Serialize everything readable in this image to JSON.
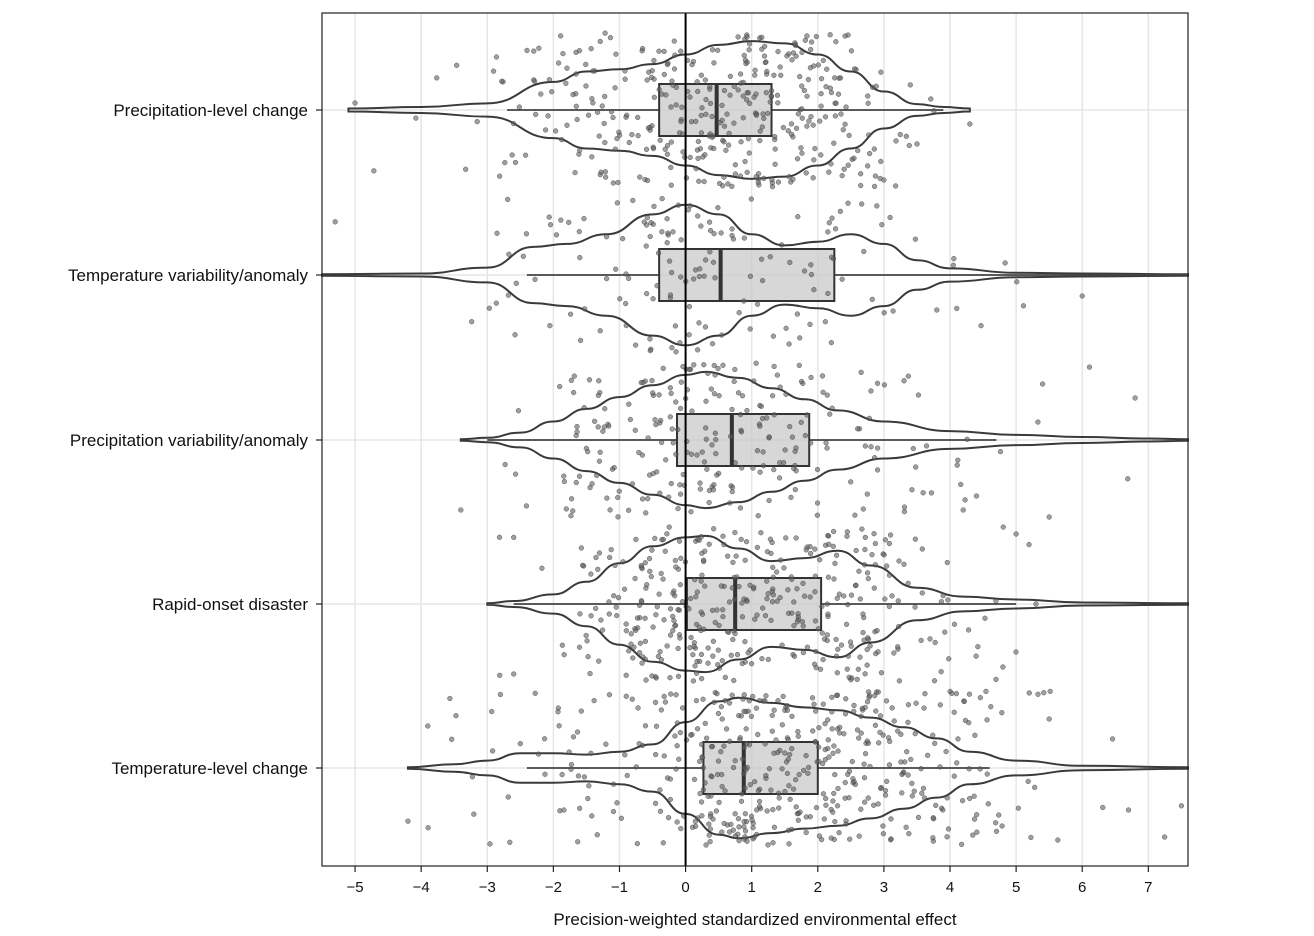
{
  "chart_data": {
    "type": "violin-box-jitter",
    "orientation": "horizontal",
    "xlabel": "Precision-weighted standardized environmental effect",
    "ylabel": "",
    "title": "",
    "xlim": [
      -5.5,
      7.6
    ],
    "xticks": [
      -5,
      -4,
      -3,
      -2,
      -1,
      0,
      1,
      2,
      3,
      4,
      5,
      6,
      7
    ],
    "xtick_labels": [
      "−5",
      "−4",
      "−3",
      "−2",
      "−1",
      "0",
      "1",
      "2",
      "3",
      "4",
      "5",
      "6",
      "7"
    ],
    "grid": true,
    "reference_line_x": 0,
    "categories": [
      "Precipitation-level change",
      "Temperature variability/anomaly",
      "Precipitation variability/anomaly",
      "Rapid-onset disaster",
      "Temperature-level change"
    ],
    "boxes": [
      {
        "category": "Precipitation-level change",
        "whisker_low": -2.7,
        "q1": -0.4,
        "median": 0.47,
        "q3": 1.3,
        "whisker_high": 3.9
      },
      {
        "category": "Temperature variability/anomaly",
        "whisker_low": -2.4,
        "q1": -0.4,
        "median": 0.53,
        "q3": 2.25,
        "whisker_high": 7.6
      },
      {
        "category": "Precipitation variability/anomaly",
        "whisker_low": -3.0,
        "q1": -0.13,
        "median": 0.7,
        "q3": 1.87,
        "whisker_high": 4.7
      },
      {
        "category": "Rapid-onset disaster",
        "whisker_low": -2.6,
        "q1": 0.02,
        "median": 0.75,
        "q3": 2.05,
        "whisker_high": 5.0
      },
      {
        "category": "Temperature-level change",
        "whisker_low": -2.4,
        "q1": 0.27,
        "median": 0.88,
        "q3": 2.0,
        "whisker_high": 4.6
      }
    ],
    "violins": [
      {
        "category": "Precipitation-level change",
        "x_min": -5.1,
        "x_max": 4.3,
        "density": [
          [
            -5.1,
            0.02
          ],
          [
            -4.0,
            0.04
          ],
          [
            -3.0,
            0.09
          ],
          [
            -2.0,
            0.38
          ],
          [
            -1.5,
            0.52
          ],
          [
            -1.0,
            0.55
          ],
          [
            -0.5,
            0.62
          ],
          [
            0,
            0.75
          ],
          [
            0.5,
            0.88
          ],
          [
            1.0,
            0.93
          ],
          [
            1.5,
            0.9
          ],
          [
            2.0,
            0.75
          ],
          [
            2.5,
            0.52
          ],
          [
            3.0,
            0.25
          ],
          [
            3.5,
            0.08
          ],
          [
            3.9,
            0.04
          ],
          [
            4.3,
            0.02
          ]
        ]
      },
      {
        "category": "Temperature variability/anomaly",
        "x_min": -5.5,
        "x_max": 7.6,
        "density": [
          [
            -5.5,
            0.01
          ],
          [
            -4.0,
            0.02
          ],
          [
            -3.0,
            0.1
          ],
          [
            -2.3,
            0.38
          ],
          [
            -1.8,
            0.42
          ],
          [
            -1.2,
            0.55
          ],
          [
            -0.5,
            0.82
          ],
          [
            0,
            0.95
          ],
          [
            0.5,
            0.82
          ],
          [
            1.0,
            0.55
          ],
          [
            1.5,
            0.4
          ],
          [
            2.0,
            0.45
          ],
          [
            2.5,
            0.55
          ],
          [
            3.0,
            0.42
          ],
          [
            3.5,
            0.2
          ],
          [
            4.0,
            0.09
          ],
          [
            5.0,
            0.03
          ],
          [
            6.0,
            0.02
          ],
          [
            7.6,
            0.01
          ]
        ]
      },
      {
        "category": "Precipitation variability/anomaly",
        "x_min": -3.4,
        "x_max": 7.6,
        "density": [
          [
            -3.4,
            0.01
          ],
          [
            -3.0,
            0.03
          ],
          [
            -2.5,
            0.1
          ],
          [
            -2.0,
            0.25
          ],
          [
            -1.5,
            0.42
          ],
          [
            -1.0,
            0.58
          ],
          [
            -0.5,
            0.74
          ],
          [
            0,
            0.88
          ],
          [
            0.3,
            0.92
          ],
          [
            0.8,
            0.84
          ],
          [
            1.3,
            0.7
          ],
          [
            1.8,
            0.55
          ],
          [
            2.3,
            0.4
          ],
          [
            3.0,
            0.25
          ],
          [
            4.0,
            0.12
          ],
          [
            5.0,
            0.07
          ],
          [
            6.0,
            0.04
          ],
          [
            7.0,
            0.02
          ],
          [
            7.6,
            0.01
          ]
        ]
      },
      {
        "category": "Rapid-onset disaster",
        "x_min": -3.0,
        "x_max": 7.6,
        "density": [
          [
            -3.0,
            0.01
          ],
          [
            -2.6,
            0.04
          ],
          [
            -2.0,
            0.13
          ],
          [
            -1.5,
            0.3
          ],
          [
            -1.0,
            0.55
          ],
          [
            -0.5,
            0.78
          ],
          [
            0,
            0.9
          ],
          [
            0.3,
            0.92
          ],
          [
            0.8,
            0.75
          ],
          [
            1.3,
            0.58
          ],
          [
            1.8,
            0.62
          ],
          [
            2.3,
            0.72
          ],
          [
            2.8,
            0.52
          ],
          [
            3.5,
            0.22
          ],
          [
            4.2,
            0.1
          ],
          [
            5.0,
            0.06
          ],
          [
            6.0,
            0.02
          ],
          [
            7.6,
            0.01
          ]
        ]
      },
      {
        "category": "Temperature-level change",
        "x_min": -4.2,
        "x_max": 7.6,
        "density": [
          [
            -4.2,
            0.01
          ],
          [
            -3.5,
            0.05
          ],
          [
            -3.0,
            0.1
          ],
          [
            -2.5,
            0.2
          ],
          [
            -2.0,
            0.2
          ],
          [
            -1.5,
            0.18
          ],
          [
            -1.0,
            0.22
          ],
          [
            -0.5,
            0.32
          ],
          [
            0,
            0.62
          ],
          [
            0.5,
            0.9
          ],
          [
            0.8,
            0.95
          ],
          [
            1.3,
            0.88
          ],
          [
            1.8,
            0.82
          ],
          [
            2.3,
            0.78
          ],
          [
            2.8,
            0.68
          ],
          [
            3.3,
            0.55
          ],
          [
            3.8,
            0.4
          ],
          [
            4.3,
            0.22
          ],
          [
            5.0,
            0.1
          ],
          [
            6.0,
            0.03
          ],
          [
            7.6,
            0.01
          ]
        ]
      }
    ],
    "jitter_points": [
      {
        "category": "Precipitation-level change",
        "n": 380,
        "x_range": [
          -5.0,
          4.3
        ],
        "outliers": [
          [
            -5.0,
            -0.05
          ],
          [
            4.3,
            0.1
          ],
          [
            3.0,
            0.5
          ]
        ]
      },
      {
        "category": "Temperature variability/anomaly",
        "n": 150,
        "x_range": [
          -5.3,
          6.0
        ],
        "outliers": [
          [
            -5.3,
            -0.38
          ],
          [
            6.0,
            0.15
          ],
          [
            3.8,
            0.25
          ]
        ]
      },
      {
        "category": "Precipitation variability/anomaly",
        "n": 240,
        "x_range": [
          -3.5,
          6.8
        ],
        "outliers": [
          [
            -3.4,
            0.5
          ],
          [
            6.8,
            -0.3
          ],
          [
            5.5,
            0.55
          ],
          [
            5.4,
            -0.4
          ],
          [
            4.2,
            0.5
          ],
          [
            4.4,
            0.4
          ]
        ]
      },
      {
        "category": "Rapid-onset disaster",
        "n": 390,
        "x_range": [
          -3.0,
          5.3
        ],
        "outliers": [
          [
            -2.6,
            0.5
          ],
          [
            5.0,
            -0.5
          ],
          [
            4.8,
            0.45
          ],
          [
            5.3,
            0.0
          ]
        ]
      },
      {
        "category": "Temperature-level change",
        "n": 470,
        "x_range": [
          -4.2,
          7.6
        ],
        "outliers": [
          [
            -4.2,
            0.38
          ],
          [
            -3.9,
            -0.3
          ],
          [
            6.7,
            0.3
          ],
          [
            7.5,
            0.27
          ],
          [
            5.5,
            -0.35
          ]
        ]
      }
    ]
  }
}
